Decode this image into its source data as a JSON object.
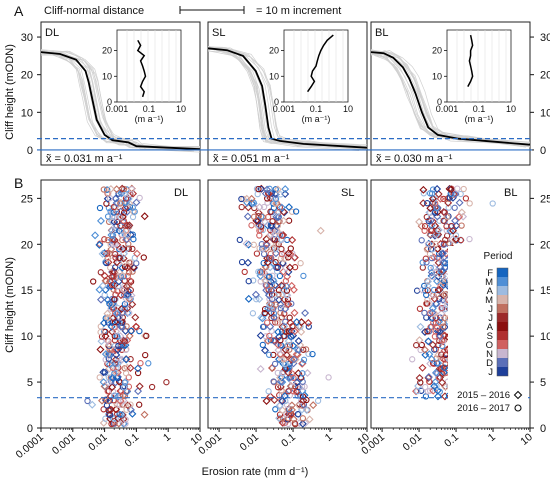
{
  "figure": {
    "panel_a_letter": "A",
    "panel_b_letter": "B",
    "scale_label": "Cliff-normal distance",
    "scale_note": "= 10 m increment"
  },
  "chart_data": [
    {
      "type": "line",
      "panel": "A",
      "ylabel": "Cliff height (mODN)",
      "ylim": [
        -4,
        34
      ],
      "yticks": [
        0,
        10,
        20,
        30
      ],
      "dashed_line_y": 3.0,
      "solid_line_y": 0,
      "x_axis_printed": false,
      "subpanels": [
        {
          "site": "DL",
          "median_label": "x̃ = 0.031 m a⁻¹",
          "profile_median": {
            "distance_fraction": [
              0.0,
              0.12,
              0.22,
              0.28,
              0.3,
              0.32,
              0.35,
              0.4,
              0.45,
              0.55,
              0.6,
              1.0
            ],
            "height": [
              26,
              25.5,
              24,
              21,
              18,
              14,
              8,
              4,
              2.6,
              2.0,
              1.0,
              0.2
            ]
          },
          "inset": {
            "xlabel": "(m a⁻¹)",
            "xticks": [
              "0.001",
              "0.1",
              "10"
            ],
            "yticks": [
              0,
              10,
              20
            ],
            "height": [
              2,
              4,
              6,
              8,
              10,
              12,
              14,
              16,
              18,
              20,
              22,
              24
            ],
            "rate": [
              0.04,
              0.05,
              0.03,
              0.04,
              0.06,
              0.05,
              0.04,
              0.03,
              0.05,
              0.02,
              0.03,
              0.02
            ]
          }
        },
        {
          "site": "SL",
          "median_label": "x̃ = 0.051 m a⁻¹",
          "profile_median": {
            "distance_fraction": [
              0.0,
              0.12,
              0.22,
              0.3,
              0.34,
              0.36,
              0.38,
              0.4,
              0.45,
              0.6,
              1.0
            ],
            "height": [
              27,
              26.5,
              25,
              21,
              17,
              12,
              6,
              3,
              2.4,
              1.6,
              0.6
            ]
          },
          "inset": {
            "xlabel": "(m a⁻¹)",
            "xticks": [
              "0.001",
              "0.1",
              "10"
            ],
            "yticks": [
              0,
              10,
              20
            ],
            "height": [
              4,
              6,
              8,
              10,
              12,
              14,
              16,
              18,
              20,
              22,
              24,
              26
            ],
            "rate": [
              0.03,
              0.05,
              0.08,
              0.05,
              0.06,
              0.1,
              0.12,
              0.15,
              0.2,
              0.3,
              0.5,
              1.2
            ]
          }
        },
        {
          "site": "BL",
          "median_label": "x̃ = 0.030 m a⁻¹",
          "profile_median": {
            "distance_fraction": [
              0.0,
              0.08,
              0.14,
              0.2,
              0.24,
              0.28,
              0.32,
              0.36,
              0.42,
              0.55,
              1.0
            ],
            "height": [
              26,
              25.7,
              24.5,
              22,
              19,
              15,
              10,
              6,
              4,
              3.0,
              1.4
            ]
          },
          "inset": {
            "xlabel": "(m a⁻¹)",
            "xticks": [
              "0.001",
              "0.1",
              "10"
            ],
            "yticks": [
              0,
              10,
              20
            ],
            "height": [
              6,
              8,
              10,
              12,
              14,
              16,
              18,
              20,
              22,
              24,
              26
            ],
            "rate": [
              0.02,
              0.03,
              0.04,
              0.035,
              0.03,
              0.025,
              0.03,
              0.03,
              0.04,
              0.035,
              0.03
            ]
          }
        }
      ]
    },
    {
      "type": "scatter",
      "panel": "B",
      "xlabel": "Erosion rate (mm d⁻¹)",
      "ylabel": "Cliff height (mODN)",
      "xscale": "log",
      "xlim": [
        0.0001,
        10
      ],
      "ylim": [
        0,
        27
      ],
      "yticks": [
        0,
        5,
        10,
        15,
        20,
        25
      ],
      "dashed_line_y": 3.3,
      "subpanels": [
        {
          "site": "DL",
          "xticks": [
            "0.0001",
            "0.001",
            "0.01",
            "0.1",
            "1",
            "10"
          ],
          "xlim_log10": [
            -4,
            1
          ],
          "height_range": [
            0.5,
            26
          ],
          "rate_centre_log10": [
            -1.6,
            -1.5
          ],
          "rate_spread_log10": 0.55
        },
        {
          "site": "SL",
          "xticks": [
            "0.001",
            "0.01",
            "0.1",
            "1",
            "10"
          ],
          "xlim_log10": [
            -3.3,
            1
          ],
          "height_range": [
            0.5,
            26
          ],
          "rate_centre_log10": [
            -1.0,
            -1.8
          ],
          "rate_spread_log10": 0.6
        },
        {
          "site": "BL",
          "xticks": [
            "0.001",
            "0.01",
            "0.1",
            "1",
            "10"
          ],
          "xlim_log10": [
            -3.3,
            1
          ],
          "height_range": [
            3.5,
            26
          ],
          "rate_centre_log10": [
            -1.4,
            -1.4
          ],
          "rate_spread_log10": 0.55
        }
      ],
      "legend": {
        "placement": "right of BL panel",
        "title": "Period",
        "months": [
          "F",
          "M",
          "A",
          "M",
          "J",
          "J",
          "A",
          "S",
          "O",
          "N",
          "D",
          "J"
        ],
        "month_colors": [
          "#1565c0",
          "#4f8fd6",
          "#9dbbe0",
          "#d7b3aa",
          "#c07060",
          "#9c2a2a",
          "#8b0f0f",
          "#b03030",
          "#d06060",
          "#c8b6cf",
          "#5b6fb8",
          "#1e3f9a"
        ],
        "series": [
          {
            "name": "2015 – 2016",
            "marker": "diamond"
          },
          {
            "name": "2016 – 2017",
            "marker": "circle"
          }
        ]
      }
    }
  ]
}
